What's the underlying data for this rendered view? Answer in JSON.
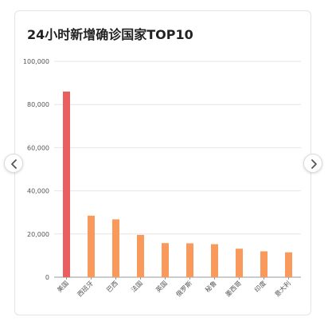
{
  "colors": {
    "highlight": "#e95e5e",
    "bar": "#f9995c",
    "grid": "#e6e6e6",
    "axis": "#999999",
    "text": "#555555"
  },
  "navigation": {
    "prev_icon": "chevron-left-icon",
    "next_icon": "chevron-right-icon"
  },
  "chart_data": {
    "type": "bar",
    "title": "24小时新增确诊国家TOP10",
    "xlabel": "",
    "ylabel": "",
    "categories": [
      "美国",
      "西班牙",
      "巴西",
      "法国",
      "英国",
      "俄罗斯",
      "秘鲁",
      "墨西哥",
      "印度",
      "意大利"
    ],
    "values": [
      86000,
      28500,
      26800,
      19600,
      15800,
      15700,
      15300,
      13200,
      12000,
      11500
    ],
    "highlight_index": 0,
    "ylim": [
      0,
      100000
    ],
    "yticks": [
      0,
      20000,
      40000,
      60000,
      80000,
      100000
    ],
    "ytick_labels": [
      "0",
      "20,000",
      "40,000",
      "60,000",
      "80,000",
      "100,000"
    ],
    "grid": true,
    "legend": "none"
  }
}
